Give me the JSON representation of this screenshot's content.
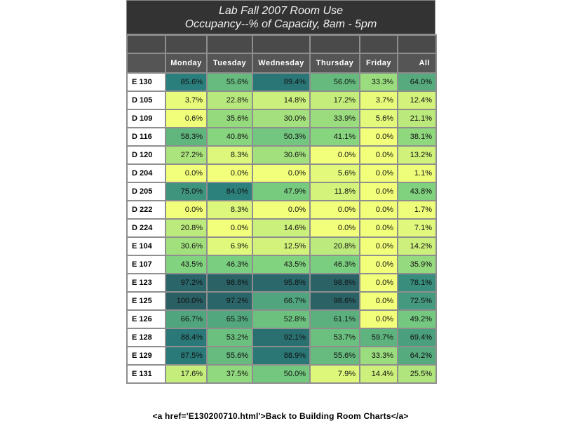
{
  "report": {
    "title_line1": "Lab Fall 2007   Room Use",
    "title_line2": "Occupancy--% of Capacity, 8am - 5pm"
  },
  "footer": {
    "link_text": "<a href='E130200710.html'>Back to Building  Room  Charts</a>"
  },
  "chart_data": {
    "type": "heatmap",
    "title": "Lab Fall 2007   Room Use",
    "subtitle": "Occupancy--% of Capacity, 8am - 5pm",
    "columns": [
      "Monday",
      "Tuesday",
      "Wednesday",
      "Thursday",
      "Friday",
      "All"
    ],
    "rows": [
      {
        "room": "E 130",
        "values": [
          "85.6%",
          "55.6%",
          "89.4%",
          "56.0%",
          "33.3%",
          "64.0%"
        ]
      },
      {
        "room": "D 105",
        "values": [
          "3.7%",
          "22.8%",
          "14.8%",
          "17.2%",
          "3.7%",
          "12.4%"
        ]
      },
      {
        "room": "D 109",
        "values": [
          "0.6%",
          "35.6%",
          "30.0%",
          "33.9%",
          "5.6%",
          "21.1%"
        ]
      },
      {
        "room": "D 116",
        "values": [
          "58.3%",
          "40.8%",
          "50.3%",
          "41.1%",
          "0.0%",
          "38.1%"
        ]
      },
      {
        "room": "D 120",
        "values": [
          "27.2%",
          "8.3%",
          "30.6%",
          "0.0%",
          "0.0%",
          "13.2%"
        ]
      },
      {
        "room": "D 204",
        "values": [
          "0.0%",
          "0.0%",
          "0.0%",
          "5.6%",
          "0.0%",
          "1.1%"
        ]
      },
      {
        "room": "D 205",
        "values": [
          "75.0%",
          "84.0%",
          "47.9%",
          "11.8%",
          "0.0%",
          "43.8%"
        ]
      },
      {
        "room": "D 222",
        "values": [
          "0.0%",
          "8.3%",
          "0.0%",
          "0.0%",
          "0.0%",
          "1.7%"
        ]
      },
      {
        "room": "D 224",
        "values": [
          "20.8%",
          "0.0%",
          "14.6%",
          "0.0%",
          "0.0%",
          "7.1%"
        ]
      },
      {
        "room": "E 104",
        "values": [
          "30.6%",
          "6.9%",
          "12.5%",
          "20.8%",
          "0.0%",
          "14.2%"
        ]
      },
      {
        "room": "E 107",
        "values": [
          "43.5%",
          "46.3%",
          "43.5%",
          "46.3%",
          "0.0%",
          "35.9%"
        ]
      },
      {
        "room": "E 123",
        "values": [
          "97.2%",
          "98.6%",
          "95.8%",
          "98.6%",
          "0.0%",
          "78.1%"
        ]
      },
      {
        "room": "E 125",
        "values": [
          "100.0%",
          "97.2%",
          "66.7%",
          "98.6%",
          "0.0%",
          "72.5%"
        ]
      },
      {
        "room": "E 126",
        "values": [
          "66.7%",
          "65.3%",
          "52.8%",
          "61.1%",
          "0.0%",
          "49.2%"
        ]
      },
      {
        "room": "E 128",
        "values": [
          "88.4%",
          "53.2%",
          "92.1%",
          "53.7%",
          "59.7%",
          "69.4%"
        ]
      },
      {
        "room": "E 129",
        "values": [
          "87.5%",
          "55.6%",
          "88.9%",
          "55.6%",
          "33.3%",
          "64.2%"
        ]
      },
      {
        "room": "E 131",
        "values": [
          "17.6%",
          "37.5%",
          "50.0%",
          "7.9%",
          "14.4%",
          "25.5%"
        ]
      }
    ],
    "color_scale": {
      "low": "#f2ff7a",
      "mid": "#7dd17f",
      "high": "#2a7f7d",
      "max": "#2a5f64"
    }
  }
}
